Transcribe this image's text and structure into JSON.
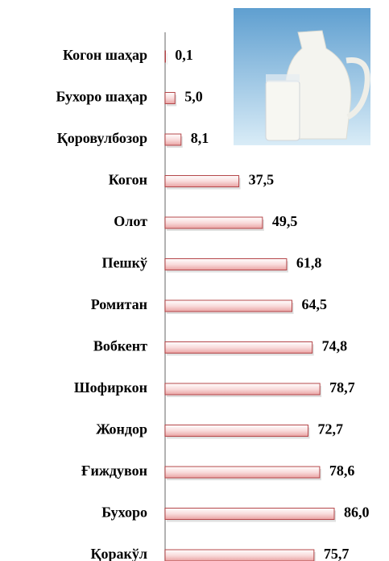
{
  "chart_data": {
    "type": "bar",
    "orientation": "horizontal",
    "categories": [
      "Когон шаҳар",
      "Бухоро шаҳар",
      "Қоровулбозор",
      "Когон",
      "Олот",
      "Пешкў",
      "Ромитан",
      "Вобкент",
      "Шофиркон",
      "Жондор",
      "Ғиждувон",
      "Бухоро",
      "Қоракўл"
    ],
    "values": [
      0.1,
      5.0,
      8.1,
      37.5,
      49.5,
      61.8,
      64.5,
      74.8,
      78.7,
      72.7,
      78.6,
      86.0,
      75.7
    ],
    "value_labels": [
      "0,1",
      "5,0",
      "8,1",
      "37,5",
      "49,5",
      "61,8",
      "64,5",
      "74,8",
      "78,7",
      "72,7",
      "78,6",
      "86,0",
      "75,7"
    ],
    "color": "#f4c4c4"
  }
}
